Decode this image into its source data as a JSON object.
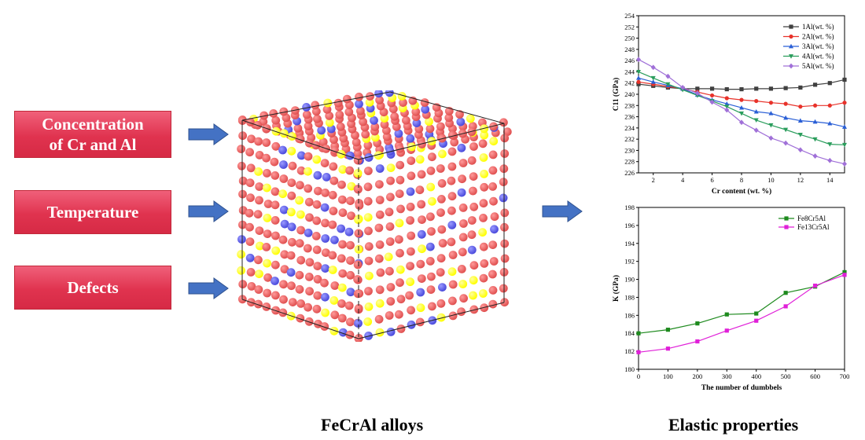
{
  "inputs": {
    "box1_line1": "Concentration",
    "box1_line2": "of Cr and Al",
    "box2": "Temperature",
    "box3": "Defects"
  },
  "captions": {
    "alloys": "FeCrAl alloys",
    "elastic": "Elastic properties"
  },
  "colors": {
    "box_fill": "#e0334f",
    "arrow_fill": "#4472c4",
    "atom_fe": "#e05050",
    "atom_cr": "#ffff00",
    "atom_al": "#4a4adc"
  },
  "chart_data": [
    {
      "type": "line",
      "xlabel": "Cr content (wt. %)",
      "ylabel": "C11 (GPa)",
      "xlim": [
        1,
        15
      ],
      "ylim": [
        226,
        254
      ],
      "xticks": [
        2,
        4,
        6,
        8,
        10,
        12,
        14
      ],
      "yticks": [
        226,
        228,
        230,
        232,
        234,
        236,
        238,
        240,
        242,
        244,
        246,
        248,
        250,
        252,
        254
      ],
      "legend_position": "top-right",
      "x": [
        1,
        2,
        3,
        4,
        5,
        6,
        7,
        8,
        9,
        10,
        11,
        12,
        13,
        14,
        15
      ],
      "series": [
        {
          "name": "1Al(wt. %)",
          "color": "#404040",
          "marker": "square",
          "values": [
            241.8,
            241.5,
            241.2,
            241.0,
            241.0,
            241.0,
            240.9,
            240.9,
            241.0,
            241.0,
            241.1,
            241.2,
            241.7,
            242.0,
            242.6
          ]
        },
        {
          "name": "2Al(wt. %)",
          "color": "#e8322a",
          "marker": "circle",
          "values": [
            242.2,
            241.8,
            241.4,
            241.0,
            240.4,
            239.8,
            239.3,
            239.0,
            238.8,
            238.5,
            238.3,
            237.8,
            238.0,
            238.0,
            238.5
          ]
        },
        {
          "name": "3Al(wt. %)",
          "color": "#2a5fd6",
          "marker": "triangle-up",
          "values": [
            242.9,
            242.2,
            241.6,
            241.0,
            239.9,
            239.0,
            238.3,
            237.6,
            236.9,
            236.6,
            235.8,
            235.3,
            235.1,
            234.8,
            234.2
          ]
        },
        {
          "name": "4Al(wt. %)",
          "color": "#2a9d5c",
          "marker": "triangle-down",
          "values": [
            244.0,
            242.9,
            241.8,
            240.8,
            239.8,
            238.8,
            237.8,
            236.6,
            235.4,
            234.5,
            233.7,
            232.8,
            232.0,
            231.1,
            231.0
          ]
        },
        {
          "name": "5Al(wt. %)",
          "color": "#a070d8",
          "marker": "diamond",
          "values": [
            246.2,
            244.8,
            243.2,
            241.2,
            240.2,
            238.6,
            237.2,
            235.0,
            233.6,
            232.2,
            231.3,
            230.1,
            229.0,
            228.2,
            227.6
          ]
        }
      ]
    },
    {
      "type": "line",
      "xlabel": "The number of dumbbels",
      "ylabel": "K (GPa)",
      "xlim": [
        0,
        700
      ],
      "ylim": [
        180,
        198
      ],
      "xticks": [
        0,
        100,
        200,
        300,
        400,
        500,
        600,
        700
      ],
      "yticks": [
        180,
        182,
        184,
        186,
        188,
        190,
        192,
        194,
        196,
        198
      ],
      "legend_position": "top-right",
      "x": [
        0,
        100,
        200,
        300,
        400,
        500,
        600,
        700
      ],
      "series": [
        {
          "name": "Fe8Cr5Al",
          "color": "#1e8a1e",
          "marker": "square",
          "values": [
            184.0,
            184.4,
            185.1,
            186.1,
            186.2,
            188.5,
            189.2,
            190.8
          ]
        },
        {
          "name": "Fe13Cr5Al",
          "color": "#e020d8",
          "marker": "square",
          "values": [
            181.9,
            182.3,
            183.1,
            184.3,
            185.4,
            187.0,
            189.3,
            190.5
          ]
        }
      ]
    }
  ]
}
